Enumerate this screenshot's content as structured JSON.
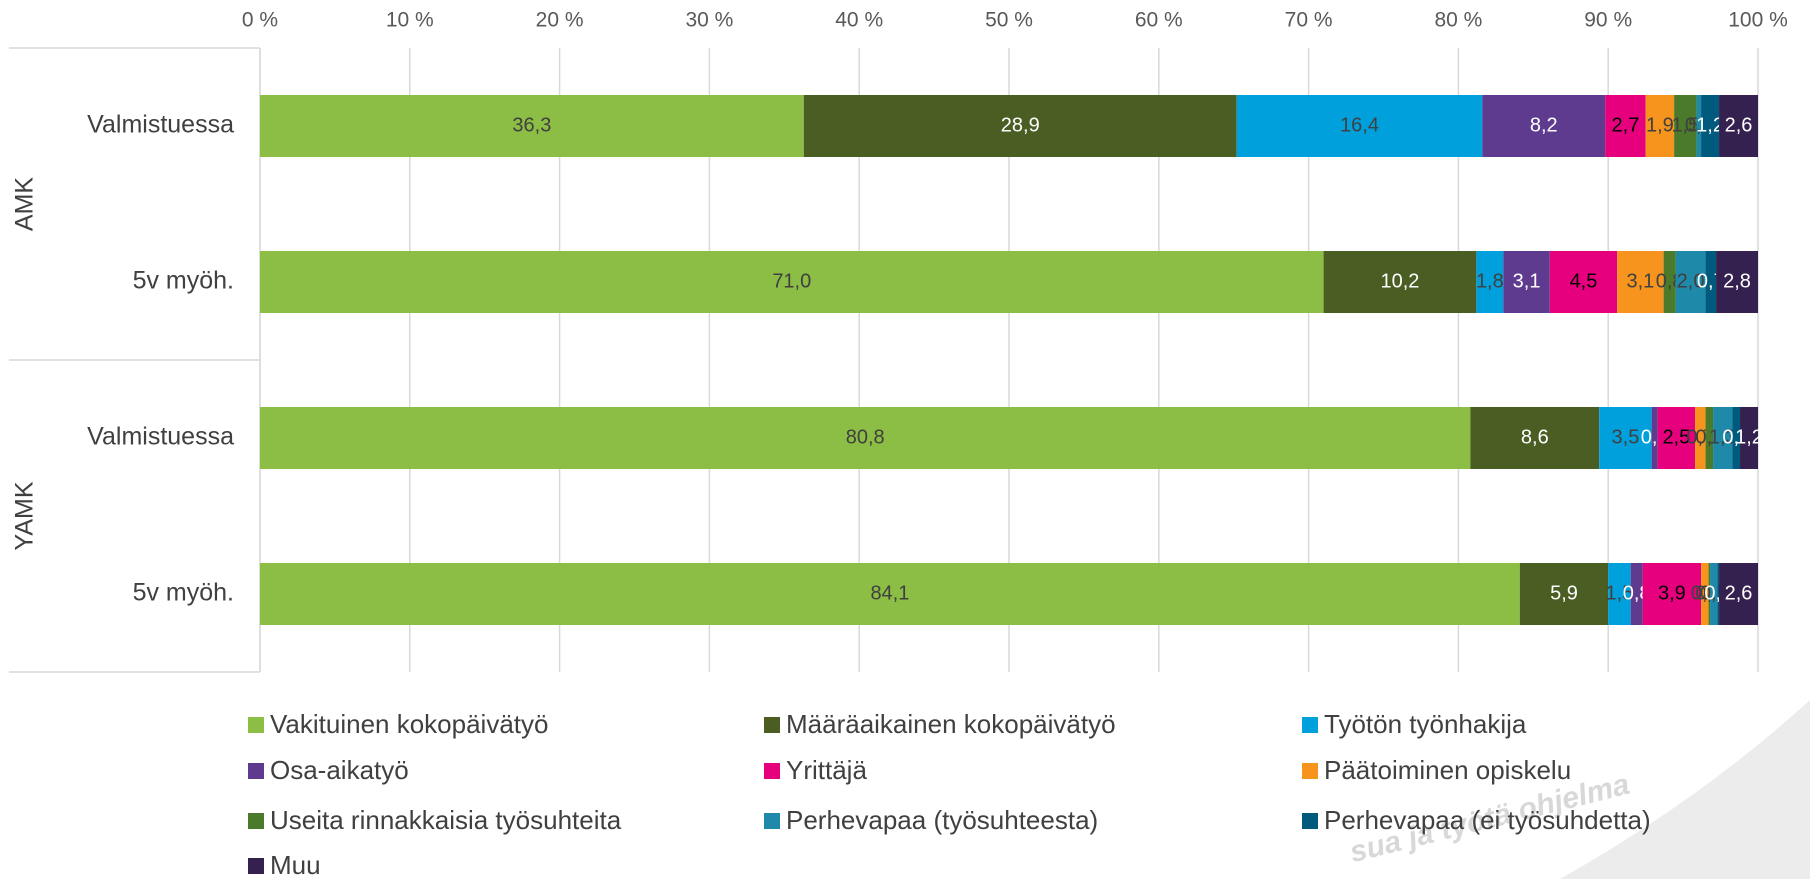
{
  "chart_data": {
    "type": "stacked-bar-horizontal",
    "group_labels": [
      "AMK",
      "YAMK"
    ],
    "categories": [
      "Valmistuessa",
      "5v myöh.",
      "Valmistuessa",
      "5v myöh."
    ],
    "xlim": [
      0,
      100
    ],
    "xticks": [
      {
        "value": 0,
        "label": "0 %"
      },
      {
        "value": 10,
        "label": "10 %"
      },
      {
        "value": 20,
        "label": "20 %"
      },
      {
        "value": 30,
        "label": "30 %"
      },
      {
        "value": 40,
        "label": "40 %"
      },
      {
        "value": 50,
        "label": "50 %"
      },
      {
        "value": 60,
        "label": "60 %"
      },
      {
        "value": 70,
        "label": "70 %"
      },
      {
        "value": 80,
        "label": "80 %"
      },
      {
        "value": 90,
        "label": "90 %"
      },
      {
        "value": 100,
        "label": "100 %"
      }
    ],
    "grid": true,
    "legend": "bottom",
    "series": [
      {
        "name": "Vakituinen kokopäivätyö",
        "color": "#8cbd44",
        "label_color": "#404040",
        "values": [
          36.3,
          71.0,
          80.8,
          84.1
        ],
        "value_labels": [
          "36,3",
          "71,0",
          "80,8",
          "84,1"
        ]
      },
      {
        "name": "Määräaikainen kokopäivätyö",
        "color": "#4a5e23",
        "label_color": "#ffffff",
        "values": [
          28.9,
          10.2,
          8.6,
          5.9
        ],
        "value_labels": [
          "28,9",
          "10,2",
          "8,6",
          "5,9"
        ]
      },
      {
        "name": "Työtön työnhakija",
        "color": "#00a0dc",
        "label_color": "#404040",
        "values": [
          16.4,
          1.8,
          3.5,
          1.5
        ],
        "value_labels": [
          "16,4",
          "1,8",
          "3,5",
          "1,5"
        ]
      },
      {
        "name": "Osa-aikatyö",
        "color": "#5f3b8f",
        "label_color": "#ffffff",
        "values": [
          8.2,
          3.1,
          0.4,
          0.8
        ],
        "value_labels": [
          "8,2",
          "3,1",
          "0,4",
          "0,8"
        ]
      },
      {
        "name": "Yrittäjä",
        "color": "#e6007e",
        "label_color": "#000000",
        "values": [
          2.7,
          4.5,
          2.5,
          3.9
        ],
        "value_labels": [
          "2,7",
          "4,5",
          "2,5",
          "3,9"
        ]
      },
      {
        "name": "Päätoiminen opiskelu",
        "color": "#f7941d",
        "label_color": "#404040",
        "values": [
          1.9,
          3.1,
          0.7,
          0.5
        ],
        "value_labels": [
          "1,9",
          "3,1",
          "0,7",
          "0,5"
        ]
      },
      {
        "name": "Useita rinnakkaisia työsuhteita",
        "color": "#4a7a2a",
        "label_color": "#404040",
        "values": [
          1.5,
          0.8,
          0.5,
          0.1
        ],
        "value_labels": [
          "1,5",
          "0,8",
          "0,5",
          "0,1"
        ]
      },
      {
        "name": "Perhevapaa (työsuhteesta)",
        "color": "#1e89a8",
        "label_color": "#404040",
        "values": [
          0.3,
          2.0,
          1.3,
          0.5
        ],
        "value_labels": [
          "0,3",
          "2,0",
          "1,3",
          "0,5"
        ]
      },
      {
        "name": "Perhevapaa (ei työsuhdetta)",
        "color": "#005a7d",
        "label_color": "#ffffff",
        "values": [
          1.2,
          0.7,
          0.5,
          0.1
        ],
        "value_labels": [
          "1,2",
          "0,7",
          "0,5",
          "0,1"
        ]
      },
      {
        "name": "Muu",
        "color": "#34214f",
        "label_color": "#ffffff",
        "values": [
          2.6,
          2.8,
          1.2,
          2.6
        ],
        "value_labels": [
          "2,6",
          "2,8",
          "1,2",
          "2,6"
        ]
      }
    ],
    "watermark": "sua ja työtä ohjelma"
  }
}
